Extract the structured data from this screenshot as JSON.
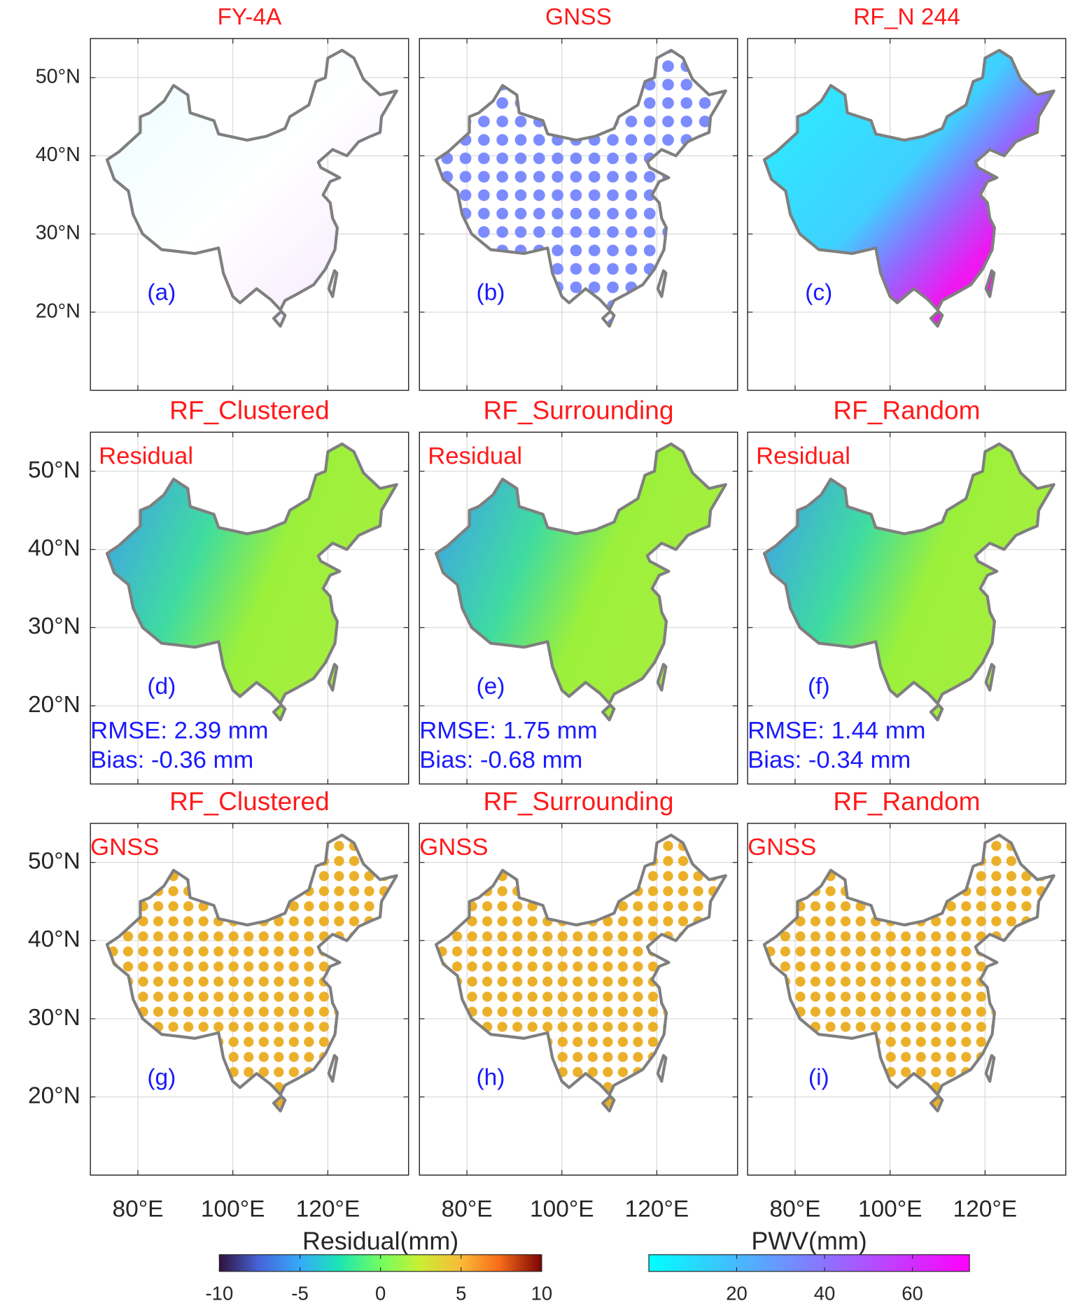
{
  "axes": {
    "xlim": [
      70,
      137
    ],
    "ylim": [
      10,
      55
    ],
    "xticks": [
      {
        "value": 80,
        "label": "80°E"
      },
      {
        "value": 100,
        "label": "100°E"
      },
      {
        "value": 120,
        "label": "120°E"
      }
    ],
    "yticks": [
      {
        "value": 20,
        "label": "20°N"
      },
      {
        "value": 30,
        "label": "30°N"
      },
      {
        "value": 40,
        "label": "40°N"
      },
      {
        "value": 50,
        "label": "50°N"
      }
    ]
  },
  "panels": [
    {
      "title": "FY-4A",
      "label": "(a)"
    },
    {
      "title": "GNSS",
      "label": "(b)"
    },
    {
      "title": "RF_N 244",
      "label": "(c)"
    },
    {
      "title": "RF_Clustered",
      "annotation": "Residual",
      "label": "(d)",
      "rmse": "RMSE: 2.39 mm",
      "bias": "Bias: -0.36 mm"
    },
    {
      "title": "RF_Surrounding",
      "annotation": "Residual",
      "label": "(e)",
      "rmse": "RMSE: 1.75 mm",
      "bias": "Bias: -0.68 mm"
    },
    {
      "title": "RF_Random",
      "annotation": "Residual",
      "label": "(f)",
      "rmse": "RMSE: 1.44 mm",
      "bias": "Bias: -0.34 mm"
    },
    {
      "title": "RF_Clustered",
      "annotation": "GNSS",
      "label": "(g)"
    },
    {
      "title": "RF_Surrounding",
      "annotation": "GNSS",
      "label": "(h)"
    },
    {
      "title": "RF_Random",
      "annotation": "GNSS",
      "label": "(i)"
    }
  ],
  "colorbars": [
    {
      "label": "Residual(mm)",
      "lim": [
        -10,
        10
      ],
      "ticks": [
        -10,
        -5,
        0,
        5,
        10
      ]
    },
    {
      "label": "PWV(mm)",
      "lim": [
        0,
        73
      ],
      "ticks": [
        20,
        40,
        60
      ]
    }
  ]
}
